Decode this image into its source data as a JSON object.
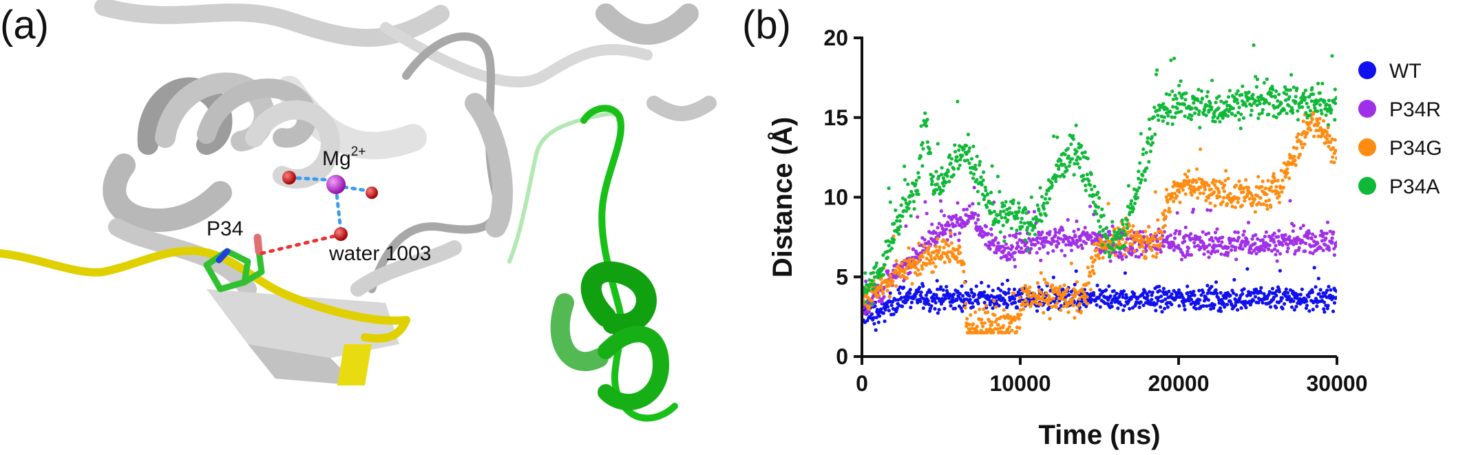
{
  "panel_a": {
    "label": "(a)",
    "annotations": {
      "mg": "Mg",
      "mg_charge": "2+",
      "residue": "P34",
      "water": "water 1003"
    },
    "colors": {
      "protein": "#c8c8c8",
      "yellow_strand": "#e8dc10",
      "green_loop": "#1ec81e",
      "mg_ion": "#c828d8",
      "water_oxygen": "#d01010",
      "coordination": "#3c9cf0",
      "hbond": "#f03030"
    }
  },
  "panel_b": {
    "label": "(b)"
  },
  "chart_data": {
    "type": "scatter",
    "title": "",
    "xlabel": "Time (ns)",
    "ylabel": "Distance (Å)",
    "xlim": [
      0,
      30000
    ],
    "ylim": [
      0,
      20
    ],
    "xticks": [
      "0",
      "10000",
      "20000",
      "30000"
    ],
    "yticks": [
      "0",
      "5",
      "10",
      "15",
      "20"
    ],
    "grid": false,
    "legend_position": "right",
    "series": [
      {
        "name": "WT",
        "color": "#1010ee",
        "trace": [
          [
            0,
            2.8
          ],
          [
            1000,
            2.6
          ],
          [
            2000,
            3.4
          ],
          [
            3000,
            3.8
          ],
          [
            5000,
            3.6
          ],
          [
            7000,
            3.7
          ],
          [
            9000,
            3.6
          ],
          [
            11000,
            3.7
          ],
          [
            14000,
            3.6
          ],
          [
            17000,
            3.6
          ],
          [
            20000,
            3.7
          ],
          [
            23000,
            3.6
          ],
          [
            26000,
            3.7
          ],
          [
            28000,
            3.6
          ],
          [
            30000,
            3.8
          ]
        ],
        "spread": 0.7
      },
      {
        "name": "P34R",
        "color": "#a030e8",
        "trace": [
          [
            0,
            3.0
          ],
          [
            1500,
            4.5
          ],
          [
            3000,
            6.0
          ],
          [
            4500,
            7.5
          ],
          [
            6000,
            8.5
          ],
          [
            7000,
            9.0
          ],
          [
            8000,
            7.5
          ],
          [
            9000,
            6.5
          ],
          [
            10000,
            7.0
          ],
          [
            12000,
            7.2
          ],
          [
            14000,
            7.5
          ],
          [
            16000,
            7.0
          ],
          [
            18000,
            7.2
          ],
          [
            20000,
            7.2
          ],
          [
            23000,
            7.0
          ],
          [
            26000,
            7.2
          ],
          [
            30000,
            7.2
          ]
        ],
        "spread": 0.8
      },
      {
        "name": "P34G",
        "color": "#ff8c10",
        "trace": [
          [
            0,
            3.5
          ],
          [
            1000,
            4.2
          ],
          [
            2500,
            5.5
          ],
          [
            4000,
            6.0
          ],
          [
            5500,
            6.8
          ],
          [
            6400,
            6.0
          ],
          [
            6600,
            2.0
          ],
          [
            8000,
            1.9
          ],
          [
            9800,
            2.0
          ],
          [
            10200,
            3.6
          ],
          [
            12000,
            3.8
          ],
          [
            14000,
            3.6
          ],
          [
            15000,
            7.0
          ],
          [
            17000,
            7.5
          ],
          [
            18500,
            7.0
          ],
          [
            19500,
            10.0
          ],
          [
            20500,
            11.0
          ],
          [
            21500,
            10.5
          ],
          [
            22500,
            10.2
          ],
          [
            24000,
            10.2
          ],
          [
            25500,
            10.0
          ],
          [
            26500,
            11.0
          ],
          [
            27500,
            13.0
          ],
          [
            28500,
            15.0
          ],
          [
            29300,
            14.0
          ],
          [
            30000,
            12.5
          ]
        ],
        "spread": 0.9
      },
      {
        "name": "P34A",
        "color": "#10b838",
        "trace": [
          [
            0,
            4.0
          ],
          [
            1200,
            5.5
          ],
          [
            2500,
            9.0
          ],
          [
            3500,
            10.5
          ],
          [
            4000,
            15.5
          ],
          [
            4500,
            10.5
          ],
          [
            5500,
            12.0
          ],
          [
            6500,
            13.0
          ],
          [
            7500,
            11.0
          ],
          [
            8500,
            8.5
          ],
          [
            9500,
            9.0
          ],
          [
            10500,
            8.0
          ],
          [
            11500,
            9.5
          ],
          [
            12500,
            12.0
          ],
          [
            13500,
            13.0
          ],
          [
            14500,
            11.0
          ],
          [
            15500,
            7.0
          ],
          [
            16500,
            7.5
          ],
          [
            17500,
            11.0
          ],
          [
            18500,
            15.0
          ],
          [
            20000,
            16.0
          ],
          [
            22000,
            15.5
          ],
          [
            24000,
            16.0
          ],
          [
            26000,
            16.0
          ],
          [
            28000,
            16.0
          ],
          [
            30000,
            15.8
          ]
        ],
        "spread": 1.1
      }
    ]
  }
}
